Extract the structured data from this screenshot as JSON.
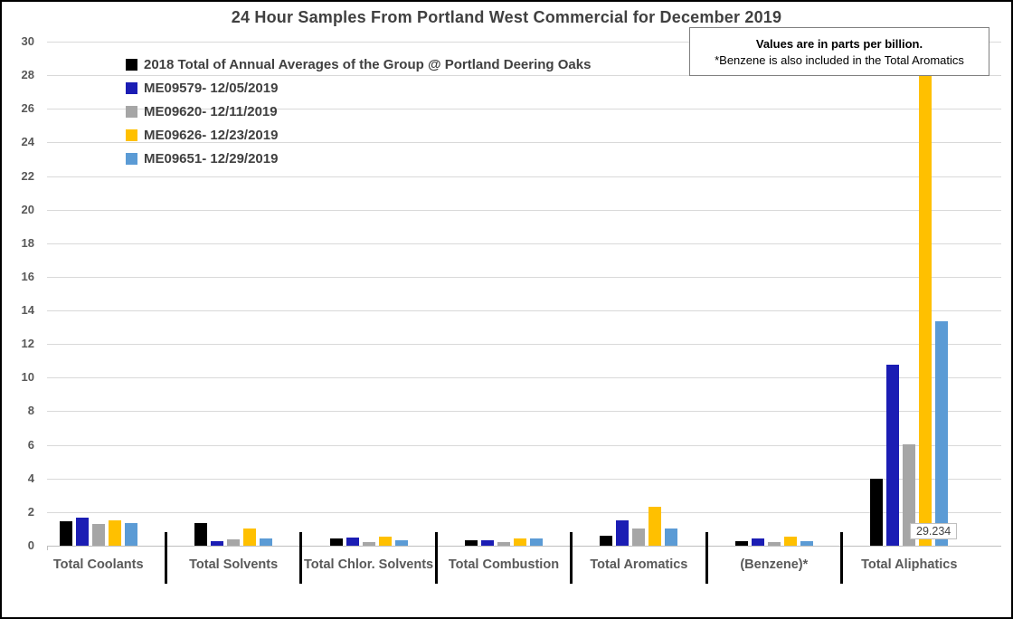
{
  "window": {
    "title": "24 Hour Samples From Portland West Commercial for December 2019"
  },
  "note": {
    "line1": "Values are in parts per billion.",
    "line2": "*Benzene is also included in the Total Aromatics"
  },
  "annotation": {
    "text": "29.234",
    "series": "ME09626- 12/23/2019",
    "category": "Total Aliphatics"
  },
  "chart_data": {
    "type": "bar",
    "title": "24 Hour Samples From Portland West Commercial for December 2019",
    "xlabel": "",
    "ylabel": "",
    "ylim": [
      0,
      30
    ],
    "yticks": [
      0,
      2,
      4,
      6,
      8,
      10,
      12,
      14,
      16,
      18,
      20,
      22,
      24,
      26,
      28,
      30
    ],
    "grid": true,
    "legend_position": "top-left-inside",
    "categories": [
      "Total Coolants",
      "Total Solvents",
      "Total Chlor. Solvents",
      "Total Combustion",
      "Total Aromatics",
      "(Benzene)*",
      "Total Aliphatics"
    ],
    "series": [
      {
        "name": "2018 Total of Annual Averages of the Group @ Portland Deering Oaks",
        "color": "#000000",
        "values": [
          1.45,
          1.35,
          0.45,
          0.3,
          0.6,
          0.25,
          4.0
        ]
      },
      {
        "name": "ME09579- 12/05/2019",
        "color": "#1b1db4",
        "values": [
          1.65,
          0.25,
          0.5,
          0.35,
          1.5,
          0.45,
          10.75
        ]
      },
      {
        "name": "ME09620- 12/11/2019",
        "color": "#a6a6a6",
        "values": [
          1.3,
          0.4,
          0.2,
          0.2,
          1.0,
          0.2,
          6.05
        ]
      },
      {
        "name": "ME09626- 12/23/2019",
        "color": "#ffc000",
        "values": [
          1.5,
          1.0,
          0.55,
          0.45,
          2.3,
          0.55,
          29.234
        ]
      },
      {
        "name": "ME09651- 12/29/2019",
        "color": "#5b9bd5",
        "values": [
          1.35,
          0.45,
          0.35,
          0.45,
          1.0,
          0.25,
          13.35
        ]
      }
    ]
  },
  "style": {
    "gridline_color": "#d9d9d9",
    "axis_color": "#bfbfbf",
    "text_color": "#595959",
    "title_color": "#404040"
  }
}
